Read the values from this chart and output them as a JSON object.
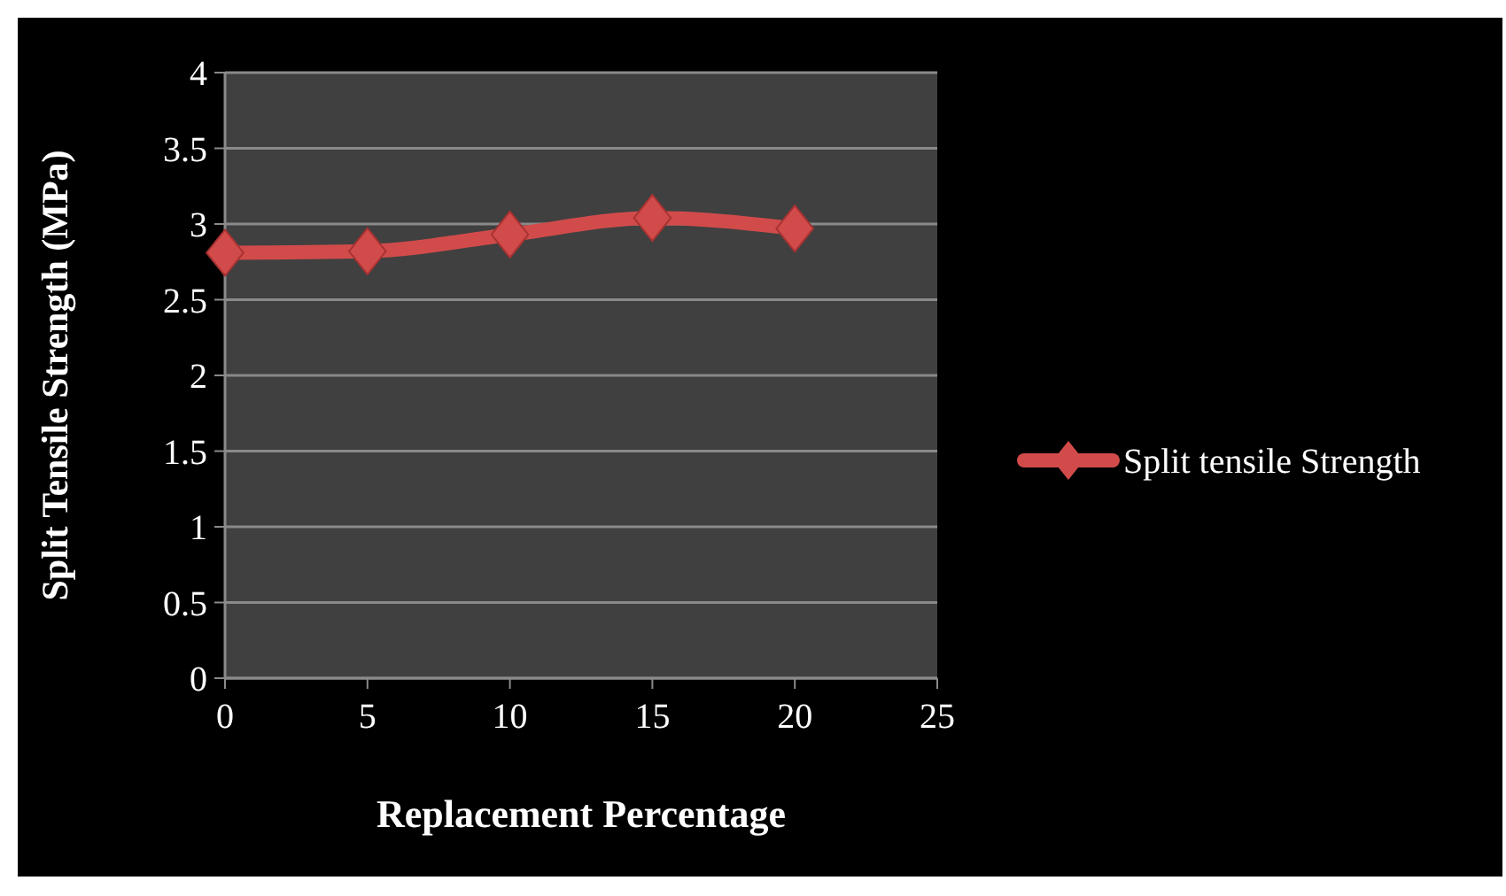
{
  "chart_data": {
    "type": "line",
    "xlabel": "Replacement Percentage",
    "ylabel": "Split Tensile Strength (MPa)",
    "x": [
      0,
      5,
      10,
      15,
      20
    ],
    "series": [
      {
        "name": "Split tensile Strength",
        "color": "#d24b4b",
        "values": [
          2.81,
          2.82,
          2.93,
          3.04,
          2.97
        ]
      }
    ],
    "xlim": [
      0,
      25
    ],
    "xticks": [
      0,
      5,
      10,
      15,
      20,
      25
    ],
    "ylim": [
      0,
      4
    ],
    "yticks": [
      0,
      0.5,
      1,
      1.5,
      2,
      2.5,
      3,
      3.5,
      4
    ],
    "grid": "y",
    "legend": "right",
    "marker": "diamond",
    "line_style": "solid"
  }
}
